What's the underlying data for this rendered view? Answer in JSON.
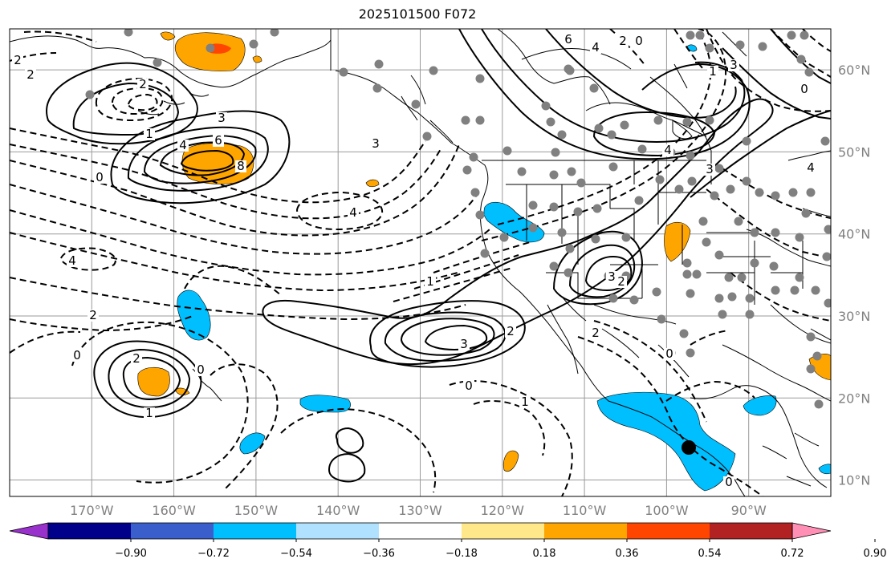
{
  "title": "2025101500 F072",
  "map": {
    "lon_range": [
      -180,
      -80
    ],
    "lat_range": [
      8,
      65
    ],
    "lon_ticks": [
      "170°W",
      "160°W",
      "150°W",
      "140°W",
      "130°W",
      "120°W",
      "110°W",
      "100°W",
      "90°W"
    ],
    "lat_ticks": [
      "10°N",
      "20°N",
      "30°N",
      "40°N",
      "50°N",
      "60°N"
    ],
    "grid": true,
    "station_marker": "black-dot",
    "station_dots_color": "#808080"
  },
  "colorbar": {
    "ticks": [
      "−0.90",
      "−0.72",
      "−0.54",
      "−0.36",
      "−0.18",
      "0.18",
      "0.36",
      "0.54",
      "0.72",
      "0.90"
    ],
    "colors": [
      "#9932cc",
      "#00008b",
      "#3a5fcd",
      "#00bfff",
      "#b0e2ff",
      "#ffffff",
      "#ffe88a",
      "#ffa500",
      "#ff4500",
      "#b22222",
      "#ff8fb4"
    ]
  },
  "contour_labels": [
    {
      "text": "2"
    },
    {
      "text": "2"
    },
    {
      "text": "2"
    },
    {
      "text": "1"
    },
    {
      "text": "4"
    },
    {
      "text": "6"
    },
    {
      "text": "8"
    },
    {
      "text": "3"
    },
    {
      "text": "0"
    },
    {
      "text": "3"
    },
    {
      "text": "4"
    },
    {
      "text": "4"
    },
    {
      "text": "2"
    },
    {
      "text": "0"
    },
    {
      "text": "2"
    },
    {
      "text": "1"
    },
    {
      "text": "0"
    },
    {
      "text": "3"
    },
    {
      "text": "2"
    },
    {
      "text": "1"
    },
    {
      "text": "0"
    },
    {
      "text": "1"
    },
    {
      "text": "3"
    },
    {
      "text": "2"
    },
    {
      "text": "2"
    },
    {
      "text": "0"
    },
    {
      "text": "0"
    },
    {
      "text": "4"
    },
    {
      "text": "3"
    },
    {
      "text": "6"
    },
    {
      "text": "4"
    },
    {
      "text": "2"
    },
    {
      "text": "0"
    },
    {
      "text": "4"
    },
    {
      "text": "3"
    },
    {
      "text": "1"
    },
    {
      "text": "0"
    }
  ]
}
